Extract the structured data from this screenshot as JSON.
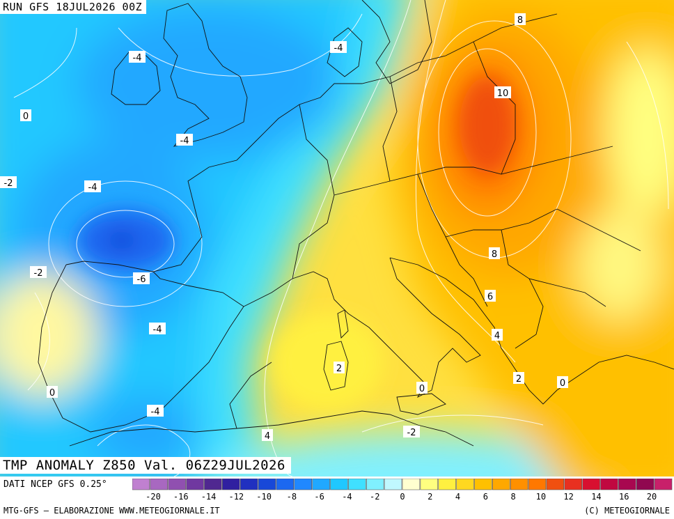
{
  "header": {
    "run_title": "RUN GFS 18JUL2026 00Z"
  },
  "map": {
    "title": "TMP ANOMALY Z850 Val. 06Z29JUL2026",
    "contour_labels": [
      {
        "text": "8",
        "id": "poland-8"
      },
      {
        "text": "-4",
        "id": "denmark-m4"
      },
      {
        "text": "-4",
        "id": "ireland-m4"
      },
      {
        "text": "0",
        "id": "atlantic-0"
      },
      {
        "text": "10",
        "id": "poland-10"
      },
      {
        "text": "-4",
        "id": "channel-m4"
      },
      {
        "text": "-2",
        "id": "west-m2"
      },
      {
        "text": "-4",
        "id": "biscay-m4-north"
      },
      {
        "text": "-6",
        "id": "biscay-m6"
      },
      {
        "text": "-2",
        "id": "iberia-m2"
      },
      {
        "text": "8",
        "id": "balkans-8"
      },
      {
        "text": "6",
        "id": "balkans-6"
      },
      {
        "text": "-4",
        "id": "spain-m4"
      },
      {
        "text": "4",
        "id": "albania-4"
      },
      {
        "text": "2",
        "id": "sardinia-2"
      },
      {
        "text": "2",
        "id": "greece-2"
      },
      {
        "text": "0",
        "id": "aegean-0"
      },
      {
        "text": "0",
        "id": "ionian-0"
      },
      {
        "text": "0",
        "id": "portugal-0"
      },
      {
        "text": "-4",
        "id": "alboran-m4"
      },
      {
        "text": "4",
        "id": "algeria-4"
      },
      {
        "text": "-2",
        "id": "tunisia-m2"
      }
    ]
  },
  "legend": {
    "source": "DATI NCEP GFS 0.25°",
    "credit": "MTG-GFS — ELABORAZIONE WWW.METEOGIORNALE.IT",
    "copyright": "(C) METEOGIORNALE",
    "tick_labels": [
      "-20",
      "-16",
      "-14",
      "-12",
      "-10",
      "-8",
      "-6",
      "-4",
      "-2",
      "0",
      "2",
      "4",
      "6",
      "8",
      "10",
      "12",
      "14",
      "16",
      "20"
    ],
    "colors": [
      "#c080d0",
      "#a868c0",
      "#9050b0",
      "#7038a0",
      "#502890",
      "#3020a0",
      "#2030c0",
      "#1848d8",
      "#1c68f0",
      "#2088ff",
      "#20a8ff",
      "#20c8ff",
      "#40e0ff",
      "#80f0ff",
      "#c0f8ff",
      "#ffffd0",
      "#ffff80",
      "#fff040",
      "#ffd820",
      "#ffc000",
      "#ffa800",
      "#ff9000",
      "#ff7800",
      "#f05010",
      "#e83020",
      "#d81030",
      "#c00840",
      "#a80850",
      "#900850",
      "#c8206a"
    ]
  }
}
